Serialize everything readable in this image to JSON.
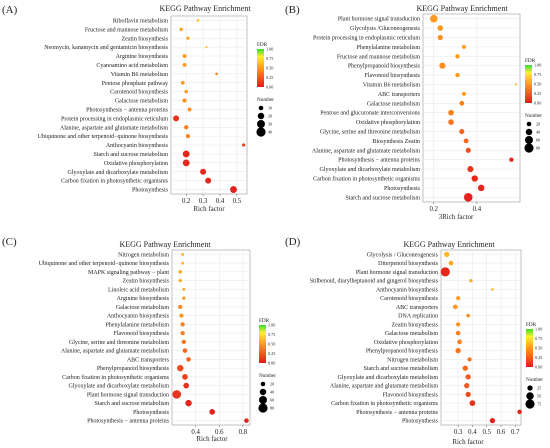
{
  "colors": {
    "low": "#e31a1c",
    "mid": "#ff9a1f",
    "high": "#ffee33",
    "top": "#33dd33",
    "frame": "#999999",
    "grid": "#e6e6e6"
  },
  "legend_common": {
    "fdr_title": "FDR",
    "number_title": "Number"
  },
  "chart_data": [
    {
      "type": "scatter",
      "panel": "(A)",
      "title": "KEGG Pathway Enrichment",
      "xlabel": "Rich factor",
      "ylabel": "",
      "xlim": [
        0.11,
        0.56
      ],
      "xticks": [
        "0.2",
        "0.3",
        "0.4",
        "0.5"
      ],
      "xtick_values": [
        0.2,
        0.3,
        0.4,
        0.5
      ],
      "fdr_ticks": [
        "1.00",
        "0.75",
        "0.50",
        "0.25",
        "0.00"
      ],
      "number_ticks": [
        "10",
        "20",
        "30",
        "40"
      ],
      "number_values": [
        10,
        20,
        30,
        40
      ],
      "categories": [
        "Riboflavin metabolism",
        "Fructose and mannose metabolism",
        "Zeatin biosynthesis",
        "Neomycin, kanamycin and gentamicin biosynthesis",
        "Arginine biosynthesis",
        "Cyanoamino acid metabolism",
        "Vitamin B6 metabolism",
        "Pentose phosphate pathway",
        "Carotenoid biosynthesis",
        "Galactose metabolism",
        "Photosynthesis − antenna proteins",
        "Protein processing in endoplasmic reticulum",
        "Alanine, aspartate and glutamate metabolism",
        "Ubiquinone and other terpenoid−quinone biosynthesis",
        "Anthocyanin biosynthesis",
        "Starch and sucrose metabolism",
        "Oxidative phosphorylation",
        "Glyoxylate and dicarboxylate metabolism",
        "Carbon fixation in photosynthetic organisms",
        "Photosynthesis"
      ],
      "points": [
        {
          "x": 0.27,
          "fdr": 0.6,
          "n": 3
        },
        {
          "x": 0.17,
          "fdr": 0.55,
          "n": 6
        },
        {
          "x": 0.21,
          "fdr": 0.55,
          "n": 5
        },
        {
          "x": 0.32,
          "fdr": 0.65,
          "n": 2
        },
        {
          "x": 0.19,
          "fdr": 0.5,
          "n": 7
        },
        {
          "x": 0.19,
          "fdr": 0.5,
          "n": 7
        },
        {
          "x": 0.38,
          "fdr": 0.4,
          "n": 3
        },
        {
          "x": 0.18,
          "fdr": 0.5,
          "n": 7
        },
        {
          "x": 0.2,
          "fdr": 0.5,
          "n": 6
        },
        {
          "x": 0.19,
          "fdr": 0.45,
          "n": 8
        },
        {
          "x": 0.22,
          "fdr": 0.45,
          "n": 7
        },
        {
          "x": 0.14,
          "fdr": 0.1,
          "n": 17
        },
        {
          "x": 0.2,
          "fdr": 0.4,
          "n": 9
        },
        {
          "x": 0.21,
          "fdr": 0.4,
          "n": 8
        },
        {
          "x": 0.54,
          "fdr": 0.15,
          "n": 5
        },
        {
          "x": 0.2,
          "fdr": 0.05,
          "n": 22
        },
        {
          "x": 0.2,
          "fdr": 0.05,
          "n": 22
        },
        {
          "x": 0.3,
          "fdr": 0.05,
          "n": 17
        },
        {
          "x": 0.33,
          "fdr": 0.05,
          "n": 17
        },
        {
          "x": 0.48,
          "fdr": 0.02,
          "n": 22
        }
      ]
    },
    {
      "type": "scatter",
      "panel": "(B)",
      "title": "KEGG Pathway Enrichment",
      "xlabel": "3Rich factor",
      "ylabel": "",
      "xlim": [
        0.15,
        0.6
      ],
      "xticks": [
        "0.2",
        "0.4"
      ],
      "xtick_values": [
        0.2,
        0.4
      ],
      "fdr_ticks": [
        "1.00",
        "0.75",
        "0.50",
        "0.25",
        "0.00"
      ],
      "number_ticks": [
        "20",
        "40",
        "60",
        "80"
      ],
      "number_values": [
        20,
        40,
        60,
        80
      ],
      "categories": [
        "Plant hormone signal transduction",
        "Glycolysis /Gluconeogenesis",
        "Protein processing in endoplasmic reticulum",
        "Phenylalanine metabolism",
        "Fructose and mannose metabolism",
        "Phenylpropanoid biosynthesis",
        "Flavonoid biosynthesis",
        "Vitamin B6 metabolism",
        "ABC transporters",
        "Galactose metabolism",
        "Pentose and glucuronate interconversions",
        "Oxidative phosphorylation",
        "Glycine, serine and threonine metabolism",
        "Biosynthesis Zeatin",
        "Alanine, aspartate and glutamate metabolism",
        "Photosynthesis − antenna proteins",
        "Glyoxylate and dicarboxylate metabolism",
        "Carbon fixation in photosynthetic organisms",
        "Photosynthesis",
        "Starch and sucrose metabolism"
      ],
      "points": [
        {
          "x": 0.2,
          "fdr": 0.5,
          "n": 55
        },
        {
          "x": 0.23,
          "fdr": 0.5,
          "n": 30
        },
        {
          "x": 0.23,
          "fdr": 0.45,
          "n": 25
        },
        {
          "x": 0.34,
          "fdr": 0.5,
          "n": 15
        },
        {
          "x": 0.31,
          "fdr": 0.5,
          "n": 18
        },
        {
          "x": 0.24,
          "fdr": 0.45,
          "n": 35
        },
        {
          "x": 0.31,
          "fdr": 0.5,
          "n": 18
        },
        {
          "x": 0.58,
          "fdr": 0.6,
          "n": 5
        },
        {
          "x": 0.34,
          "fdr": 0.5,
          "n": 15
        },
        {
          "x": 0.33,
          "fdr": 0.4,
          "n": 22
        },
        {
          "x": 0.28,
          "fdr": 0.4,
          "n": 30
        },
        {
          "x": 0.28,
          "fdr": 0.35,
          "n": 30
        },
        {
          "x": 0.33,
          "fdr": 0.3,
          "n": 25
        },
        {
          "x": 0.35,
          "fdr": 0.3,
          "n": 22
        },
        {
          "x": 0.36,
          "fdr": 0.2,
          "n": 25
        },
        {
          "x": 0.56,
          "fdr": 0.05,
          "n": 18
        },
        {
          "x": 0.37,
          "fdr": 0.1,
          "n": 35
        },
        {
          "x": 0.39,
          "fdr": 0.05,
          "n": 38
        },
        {
          "x": 0.42,
          "fdr": 0.05,
          "n": 40
        },
        {
          "x": 0.36,
          "fdr": 0.02,
          "n": 70
        }
      ]
    },
    {
      "type": "scatter",
      "panel": "(C)",
      "title": "KEGG Pathway Enrichment",
      "xlabel": "Rich factor",
      "ylabel": "",
      "xlim": [
        0.2,
        0.86
      ],
      "xticks": [
        "0.4",
        "0.6",
        "0.8"
      ],
      "xtick_values": [
        0.4,
        0.6,
        0.8
      ],
      "fdr_ticks": [
        "1.00",
        "0.75",
        "0.50",
        "0.25",
        "0.00"
      ],
      "number_ticks": [
        "20",
        "40",
        "60",
        "80"
      ],
      "number_values": [
        20,
        40,
        60,
        80
      ],
      "categories": [
        "Nitrogen metabolism",
        "Ubiquinone and other terpenoid−quinone biosynthesis",
        "MAPK signaling pathway − plant",
        "Zeatin biosynthesis",
        "Linoleic acid metabolism",
        "Arginine biosynthesis",
        "Galactose metabolism",
        "Anthocyanin biosynthesis",
        "Phenylalanine metabolism",
        "Flavonoid biosynthesis",
        "Glycine, serine and threonine metabolism",
        "Alanine, aspartate and glutamate metabolism",
        "ABC transporters",
        "Phenylpropanoid biosynthesis",
        "Carbon fixation in photosynthetic organisms",
        "Glyoxylate and dicarboxylate metabolism",
        "Plant hormone signal transduction",
        "Starch and sucrose metabolism",
        "Photosynthesis",
        "Photosynthesis − antenna proteins"
      ],
      "points": [
        {
          "x": 0.29,
          "fdr": 0.6,
          "n": 8
        },
        {
          "x": 0.29,
          "fdr": 0.6,
          "n": 8
        },
        {
          "x": 0.27,
          "fdr": 0.55,
          "n": 12
        },
        {
          "x": 0.27,
          "fdr": 0.55,
          "n": 10
        },
        {
          "x": 0.3,
          "fdr": 0.55,
          "n": 8
        },
        {
          "x": 0.3,
          "fdr": 0.5,
          "n": 10
        },
        {
          "x": 0.27,
          "fdr": 0.45,
          "n": 18
        },
        {
          "x": 0.28,
          "fdr": 0.45,
          "n": 15
        },
        {
          "x": 0.29,
          "fdr": 0.4,
          "n": 18
        },
        {
          "x": 0.29,
          "fdr": 0.4,
          "n": 18
        },
        {
          "x": 0.3,
          "fdr": 0.35,
          "n": 18
        },
        {
          "x": 0.31,
          "fdr": 0.3,
          "n": 20
        },
        {
          "x": 0.34,
          "fdr": 0.3,
          "n": 20
        },
        {
          "x": 0.27,
          "fdr": 0.2,
          "n": 40
        },
        {
          "x": 0.31,
          "fdr": 0.15,
          "n": 30
        },
        {
          "x": 0.32,
          "fdr": 0.1,
          "n": 30
        },
        {
          "x": 0.24,
          "fdr": 0.1,
          "n": 70
        },
        {
          "x": 0.34,
          "fdr": 0.05,
          "n": 40
        },
        {
          "x": 0.54,
          "fdr": 0.02,
          "n": 30
        },
        {
          "x": 0.83,
          "fdr": 0.02,
          "n": 20
        }
      ]
    },
    {
      "type": "scatter",
      "panel": "(D)",
      "title": "KEGG Pathway Enrichment",
      "xlabel": "Rich factor",
      "ylabel": "",
      "xlim": [
        0.18,
        0.74
      ],
      "xticks": [
        "0.3",
        "0.4",
        "0.5",
        "0.6",
        "0.7"
      ],
      "xtick_values": [
        0.3,
        0.4,
        0.5,
        0.6,
        0.7
      ],
      "fdr_ticks": [
        "1.00",
        "0.75",
        "0.50",
        "0.25",
        "0.00"
      ],
      "number_ticks": [
        "25",
        "50",
        "75"
      ],
      "number_values": [
        25,
        50,
        75
      ],
      "categories": [
        "Glycolysis / Gluconeogenesis",
        "Diterpenoid biosynthesis",
        "Plant hormone signal transduction",
        "Stilbenoid, diarylheptanoid and gingerol biosynthesis",
        "Anthocyanin biosynthesis",
        "Carotenoid biosynthesis",
        "ABC transporters",
        "DNA replication",
        "Zeatin biosynthesis",
        "Galactose metabolism",
        "Oxidative phosphorylation",
        "Phenylpropanoid biosynthesis",
        "Nitrogen metabolism",
        "Starch and sucrose metabolism",
        "Glyoxylate and dicarboxylate metabolism",
        "Alanine, aspartate and glutamate metabolism",
        "Flavonoid biosynthesis",
        "Carbon fixation in photosynthetic organisms",
        "Photosynthesis − antenna proteins",
        "Photosynthesis"
      ],
      "points": [
        {
          "x": 0.22,
          "fdr": 0.6,
          "n": 25
        },
        {
          "x": 0.25,
          "fdr": 0.55,
          "n": 20
        },
        {
          "x": 0.21,
          "fdr": 0.05,
          "n": 75
        },
        {
          "x": 0.39,
          "fdr": 0.55,
          "n": 10
        },
        {
          "x": 0.54,
          "fdr": 0.6,
          "n": 6
        },
        {
          "x": 0.3,
          "fdr": 0.5,
          "n": 15
        },
        {
          "x": 0.28,
          "fdr": 0.5,
          "n": 20
        },
        {
          "x": 0.37,
          "fdr": 0.45,
          "n": 12
        },
        {
          "x": 0.3,
          "fdr": 0.45,
          "n": 15
        },
        {
          "x": 0.3,
          "fdr": 0.4,
          "n": 18
        },
        {
          "x": 0.31,
          "fdr": 0.4,
          "n": 20
        },
        {
          "x": 0.3,
          "fdr": 0.35,
          "n": 25
        },
        {
          "x": 0.38,
          "fdr": 0.35,
          "n": 15
        },
        {
          "x": 0.35,
          "fdr": 0.3,
          "n": 25
        },
        {
          "x": 0.37,
          "fdr": 0.25,
          "n": 25
        },
        {
          "x": 0.36,
          "fdr": 0.25,
          "n": 25
        },
        {
          "x": 0.37,
          "fdr": 0.2,
          "n": 25
        },
        {
          "x": 0.4,
          "fdr": 0.1,
          "n": 30
        },
        {
          "x": 0.73,
          "fdr": 0.05,
          "n": 18
        },
        {
          "x": 0.54,
          "fdr": 0.02,
          "n": 25
        }
      ]
    }
  ]
}
